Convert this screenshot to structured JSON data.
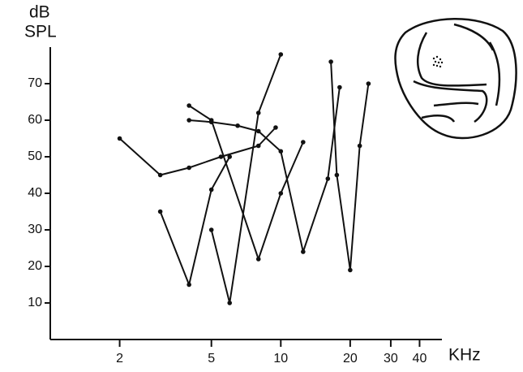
{
  "chart_data": {
    "type": "line",
    "ylabel": [
      "dB",
      "SPL"
    ],
    "xlabel": "KHz",
    "xscale": "log",
    "xlim": [
      1,
      50
    ],
    "xticks": [
      2,
      5,
      10,
      20,
      30,
      40
    ],
    "ylim": [
      0,
      80
    ],
    "yticks": [
      10,
      20,
      30,
      40,
      50,
      60,
      70
    ],
    "color": "#111111",
    "series": [
      {
        "x": [
          2,
          3,
          4,
          5.5,
          8,
          9.5
        ],
        "values": [
          55,
          45,
          47,
          50,
          53,
          58
        ]
      },
      {
        "x": [
          4,
          5,
          8,
          10,
          12.5
        ],
        "values": [
          64,
          60,
          22,
          40,
          54
        ]
      },
      {
        "x": [
          4,
          5,
          6.5,
          8,
          10,
          12.5,
          16,
          18
        ],
        "values": [
          60,
          59.5,
          58.5,
          57,
          51.5,
          24,
          44,
          69
        ]
      },
      {
        "x": [
          3,
          4,
          5,
          6
        ],
        "values": [
          35,
          15,
          41,
          50
        ]
      },
      {
        "x": [
          5,
          6,
          8,
          10
        ],
        "values": [
          30,
          10,
          62,
          78
        ]
      },
      {
        "x": [
          16.5,
          17.5,
          20,
          22,
          24
        ],
        "values": [
          76,
          45,
          19,
          53,
          70
        ]
      }
    ]
  }
}
